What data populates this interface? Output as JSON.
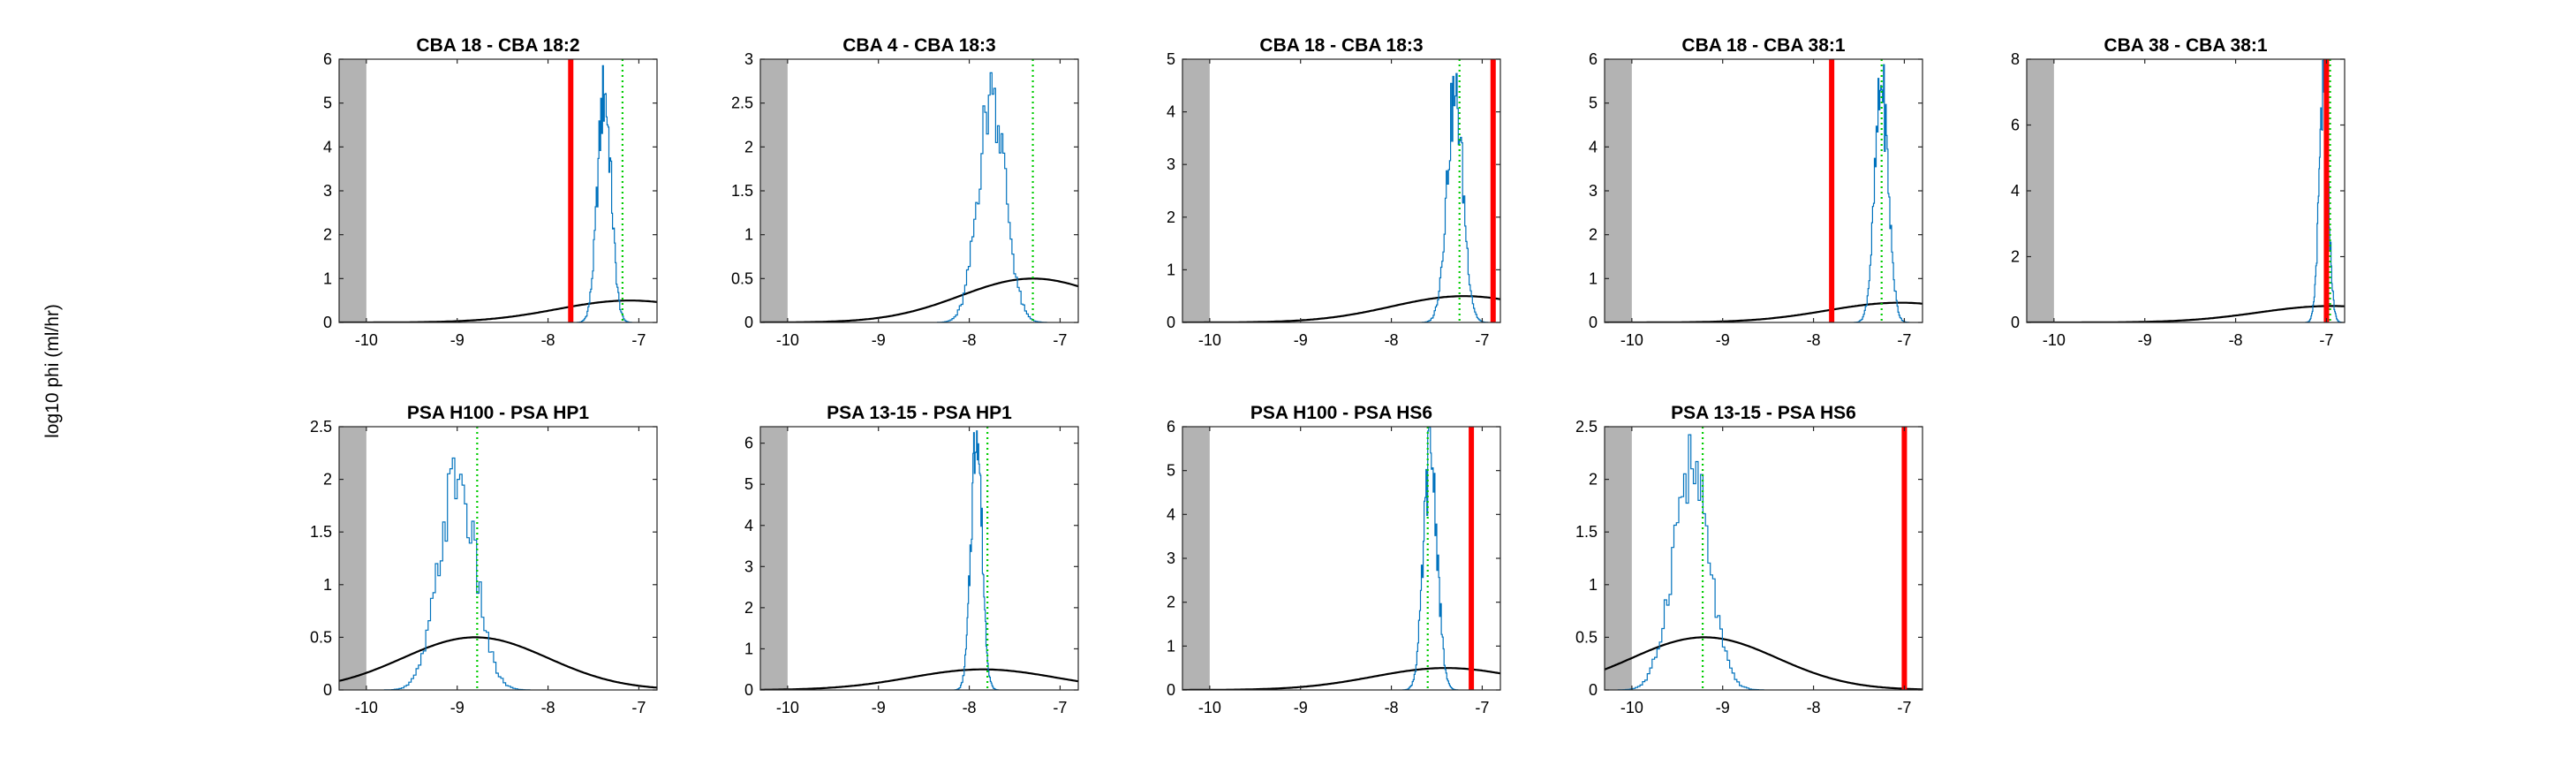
{
  "figure": {
    "ylabel": "log10 phi (ml/hr)"
  },
  "colors": {
    "histogram": "#0072BD",
    "prior_curve": "#000000",
    "observed_line": "#FF0000",
    "reference_line": "#00CC00",
    "excluded_region": "#B3B3B3",
    "axes": "#262626"
  },
  "chart_data": [
    {
      "type": "line",
      "title": "CBA 18 - CBA 18:2",
      "xlim": [
        -10.3,
        -6.8
      ],
      "ylim": [
        0,
        6
      ],
      "xticks": [
        -10,
        -9,
        -8,
        -7
      ],
      "xtick_labels": [
        "-10",
        "-9",
        "-8",
        "-7"
      ],
      "yticks": [
        0,
        1,
        2,
        3,
        4,
        5,
        6
      ],
      "ytick_labels": [
        "0",
        "1",
        "2",
        "3",
        "4",
        "5",
        "6"
      ],
      "excluded_region_x": [
        -10.3,
        -10.0
      ],
      "prior_curve": {
        "peak_x": -7.1,
        "peak_y": 0.5,
        "sd": 0.8
      },
      "histogram": {
        "center": -7.38,
        "sd": 0.075,
        "peak": 5.2
      },
      "observed_x": -7.75,
      "reference_x": -7.18
    },
    {
      "type": "line",
      "title": "CBA 4 - CBA 18:3",
      "xlim": [
        -10.3,
        -6.8
      ],
      "ylim": [
        0,
        3
      ],
      "xticks": [
        -10,
        -9,
        -8,
        -7
      ],
      "xtick_labels": [
        "-10",
        "-9",
        "-8",
        "-7"
      ],
      "yticks": [
        0,
        0.5,
        1,
        1.5,
        2,
        2.5,
        3
      ],
      "ytick_labels": [
        "0",
        "0.5",
        "1",
        "1.5",
        "2",
        "2.5",
        "3"
      ],
      "excluded_region_x": [
        -10.3,
        -10.0
      ],
      "prior_curve": {
        "peak_x": -7.3,
        "peak_y": 0.5,
        "sd": 0.8
      },
      "histogram": {
        "center": -7.75,
        "sd": 0.15,
        "peak": 2.6
      },
      "observed_x": null,
      "reference_x": -7.3
    },
    {
      "type": "line",
      "title": "CBA 18 - CBA 18:3",
      "xlim": [
        -10.3,
        -6.8
      ],
      "ylim": [
        0,
        5
      ],
      "xticks": [
        -10,
        -9,
        -8,
        -7
      ],
      "xtick_labels": [
        "-10",
        "-9",
        "-8",
        "-7"
      ],
      "yticks": [
        0,
        1,
        2,
        3,
        4,
        5
      ],
      "ytick_labels": [
        "0",
        "1",
        "2",
        "3",
        "4",
        "5"
      ],
      "excluded_region_x": [
        -10.3,
        -10.0
      ],
      "prior_curve": {
        "peak_x": -7.2,
        "peak_y": 0.5,
        "sd": 0.8
      },
      "histogram": {
        "center": -7.3,
        "sd": 0.09,
        "peak": 4.3
      },
      "observed_x": -6.88,
      "reference_x": -7.25
    },
    {
      "type": "line",
      "title": "CBA 18 - CBA 38:1",
      "xlim": [
        -10.3,
        -6.8
      ],
      "ylim": [
        0,
        6
      ],
      "xticks": [
        -10,
        -9,
        -8,
        -7
      ],
      "xtick_labels": [
        "-10",
        "-9",
        "-8",
        "-7"
      ],
      "yticks": [
        0,
        1,
        2,
        3,
        4,
        5,
        6
      ],
      "ytick_labels": [
        "0",
        "1",
        "2",
        "3",
        "4",
        "5",
        "6"
      ],
      "excluded_region_x": [
        -10.3,
        -10.0
      ],
      "prior_curve": {
        "peak_x": -7.05,
        "peak_y": 0.45,
        "sd": 0.8
      },
      "histogram": {
        "center": -7.25,
        "sd": 0.075,
        "peak": 5.3
      },
      "observed_x": -7.8,
      "reference_x": -7.25
    },
    {
      "type": "line",
      "title": "CBA 38 - CBA 38:1",
      "xlim": [
        -10.3,
        -6.8
      ],
      "ylim": [
        0,
        8
      ],
      "xticks": [
        -10,
        -9,
        -8,
        -7
      ],
      "xtick_labels": [
        "-10",
        "-9",
        "-8",
        "-7"
      ],
      "yticks": [
        0,
        2,
        4,
        6,
        8
      ],
      "ytick_labels": [
        "0",
        "2",
        "4",
        "6",
        "8"
      ],
      "excluded_region_x": [
        -10.3,
        -10.0
      ],
      "prior_curve": {
        "peak_x": -6.95,
        "peak_y": 0.5,
        "sd": 0.8
      },
      "histogram": {
        "center": -7.03,
        "sd": 0.05,
        "peak": 7.0
      },
      "observed_x": -7.0,
      "reference_x": -6.96
    },
    {
      "type": "line",
      "title": "PSA H100 - PSA HP1",
      "xlim": [
        -10.3,
        -6.8
      ],
      "ylim": [
        0,
        2.5
      ],
      "xticks": [
        -10,
        -9,
        -8,
        -7
      ],
      "xtick_labels": [
        "-10",
        "-9",
        "-8",
        "-7"
      ],
      "yticks": [
        0,
        0.5,
        1,
        1.5,
        2,
        2.5
      ],
      "ytick_labels": [
        "0",
        "0.5",
        "1",
        "1.5",
        "2",
        "2.5"
      ],
      "excluded_region_x": [
        -10.3,
        -10.0
      ],
      "prior_curve": {
        "peak_x": -8.8,
        "peak_y": 0.5,
        "sd": 0.8
      },
      "histogram": {
        "center": -9.0,
        "sd": 0.2,
        "peak": 2.0
      },
      "observed_x": null,
      "reference_x": -8.78
    },
    {
      "type": "line",
      "title": "PSA 13-15 - PSA HP1",
      "xlim": [
        -10.3,
        -6.8
      ],
      "ylim": [
        0,
        6.4
      ],
      "xticks": [
        -10,
        -9,
        -8,
        -7
      ],
      "xtick_labels": [
        "-10",
        "-9",
        "-8",
        "-7"
      ],
      "yticks": [
        0,
        1,
        2,
        3,
        4,
        5,
        6
      ],
      "ytick_labels": [
        "0",
        "1",
        "2",
        "3",
        "4",
        "5",
        "6"
      ],
      "excluded_region_x": [
        -10.3,
        -10.0
      ],
      "prior_curve": {
        "peak_x": -7.85,
        "peak_y": 0.5,
        "sd": 0.8
      },
      "histogram": {
        "center": -7.92,
        "sd": 0.06,
        "peak": 6.3
      },
      "observed_x": null,
      "reference_x": -7.8
    },
    {
      "type": "line",
      "title": "PSA H100 - PSA HS6",
      "xlim": [
        -10.3,
        -6.8
      ],
      "ylim": [
        0,
        6
      ],
      "xticks": [
        -10,
        -9,
        -8,
        -7
      ],
      "xtick_labels": [
        "-10",
        "-9",
        "-8",
        "-7"
      ],
      "yticks": [
        0,
        1,
        2,
        3,
        4,
        5,
        6
      ],
      "ytick_labels": [
        "0",
        "1",
        "2",
        "3",
        "4",
        "5",
        "6"
      ],
      "excluded_region_x": [
        -10.3,
        -10.0
      ],
      "prior_curve": {
        "peak_x": -7.4,
        "peak_y": 0.5,
        "sd": 0.8
      },
      "histogram": {
        "center": -7.57,
        "sd": 0.075,
        "peak": 5.4
      },
      "observed_x": -7.12,
      "reference_x": -7.6
    },
    {
      "type": "line",
      "title": "PSA 13-15 - PSA HS6",
      "xlim": [
        -10.3,
        -6.8
      ],
      "ylim": [
        0,
        2.5
      ],
      "xticks": [
        -10,
        -9,
        -8,
        -7
      ],
      "xtick_labels": [
        "-10",
        "-9",
        "-8",
        "-7"
      ],
      "yticks": [
        0,
        0.5,
        1,
        1.5,
        2,
        2.5
      ],
      "ytick_labels": [
        "0",
        "0.5",
        "1",
        "1.5",
        "2",
        "2.5"
      ],
      "excluded_region_x": [
        -10.3,
        -10.0
      ],
      "prior_curve": {
        "peak_x": -9.2,
        "peak_y": 0.5,
        "sd": 0.8
      },
      "histogram": {
        "center": -9.35,
        "sd": 0.2,
        "peak": 2.1
      },
      "observed_x": -7.0,
      "reference_x": -9.22
    }
  ]
}
